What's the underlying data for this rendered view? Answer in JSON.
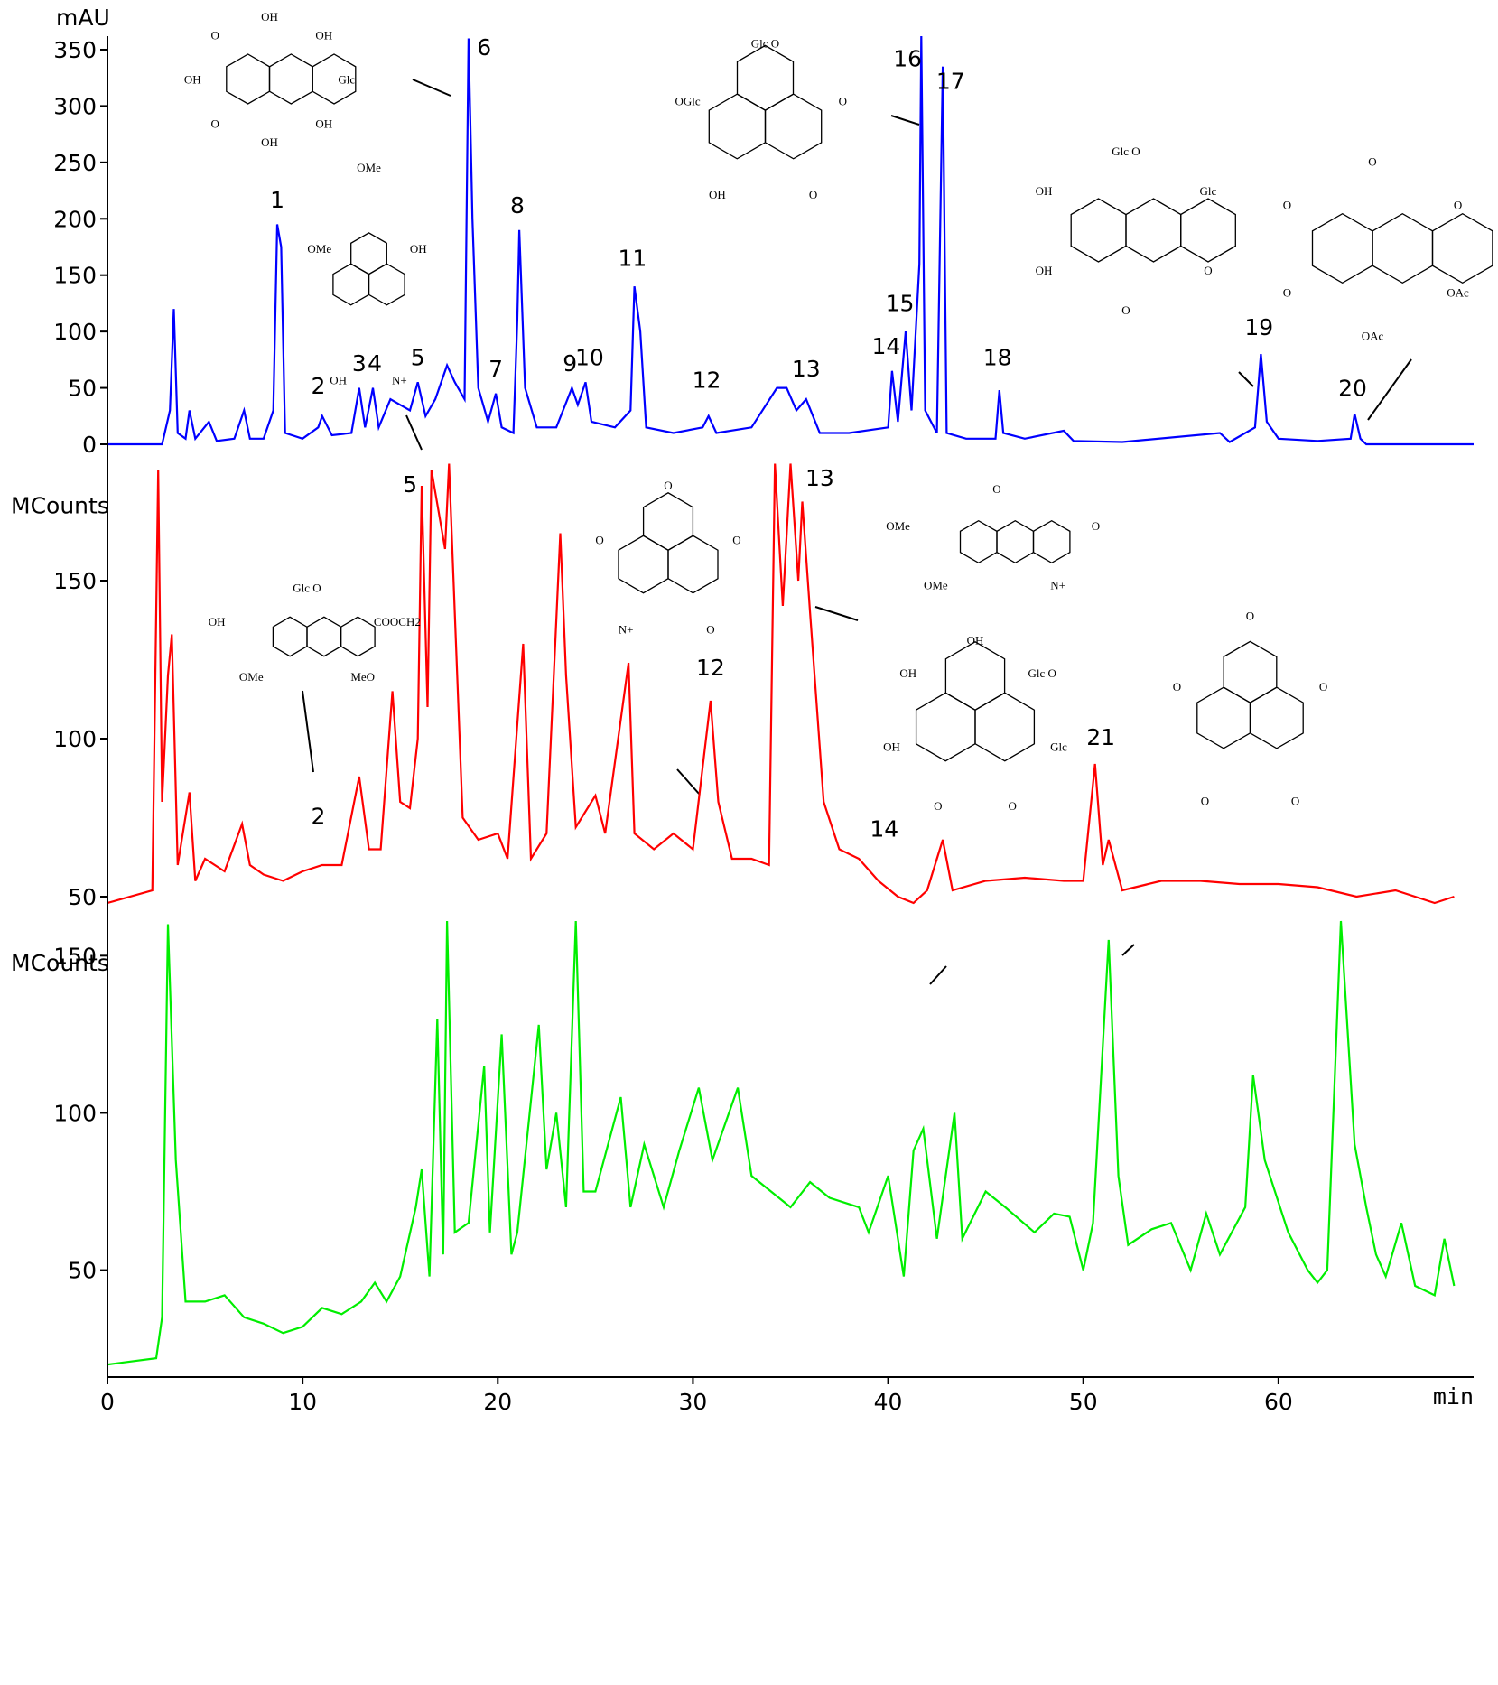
{
  "chart_data": [
    {
      "type": "line",
      "y_label": "mAU",
      "xlim": [
        0,
        70
      ],
      "ylim": [
        0,
        362
      ],
      "yticks": [
        0,
        50,
        100,
        150,
        200,
        250,
        300,
        350
      ],
      "series": [
        {
          "color": "#0000ff",
          "x": [
            0,
            2.8,
            3.2,
            3.4,
            3.6,
            4.0,
            4.2,
            4.5,
            5.2,
            5.6,
            6.5,
            7.0,
            7.3,
            8.0,
            8.5,
            8.7,
            8.9,
            9.1,
            10,
            10.8,
            11.0,
            11.5,
            12.5,
            12.9,
            13.2,
            13.6,
            13.9,
            14.5,
            15.0,
            15.5,
            15.9,
            16.3,
            16.8,
            17.4,
            17.8,
            18.3,
            18.5,
            18.7,
            19.0,
            19.5,
            19.9,
            20.2,
            20.8,
            21.0,
            21.1,
            21.4,
            22,
            23,
            23.8,
            24.1,
            24.5,
            24.8,
            26,
            26.8,
            27.0,
            27.3,
            27.6,
            29,
            30.5,
            30.8,
            31.2,
            33,
            34.3,
            34.8,
            35.3,
            35.8,
            36.5,
            38,
            40,
            40.2,
            40.5,
            40.9,
            41.2,
            41.6,
            41.7,
            41.9,
            42.5,
            42.8,
            43.0,
            44,
            45.5,
            45.7,
            45.9,
            47,
            49.0,
            49.5,
            52,
            57,
            57.5,
            58.8,
            59.1,
            59.4,
            60,
            62,
            63.7,
            63.9,
            64.2,
            64.5,
            70
          ],
          "values": [
            0,
            0,
            30,
            120,
            10,
            5,
            30,
            5,
            20,
            3,
            5,
            30,
            5,
            5,
            30,
            195,
            175,
            10,
            5,
            15,
            25,
            8,
            10,
            50,
            15,
            50,
            15,
            40,
            35,
            30,
            55,
            25,
            40,
            70,
            55,
            40,
            360,
            200,
            50,
            20,
            45,
            15,
            10,
            110,
            190,
            50,
            15,
            15,
            50,
            35,
            55,
            20,
            15,
            30,
            140,
            100,
            15,
            10,
            15,
            25,
            10,
            15,
            50,
            50,
            30,
            40,
            10,
            10,
            15,
            65,
            20,
            100,
            30,
            160,
            362,
            30,
            10,
            335,
            10,
            5,
            5,
            48,
            10,
            5,
            12,
            3,
            2,
            10,
            2,
            15,
            80,
            20,
            5,
            3,
            5,
            27,
            5,
            0,
            0
          ]
        }
      ],
      "annotations": [
        {
          "text": "1",
          "x": 8.7,
          "y": 210
        },
        {
          "text": "2",
          "x": 10.8,
          "y": 45
        },
        {
          "text": "3",
          "x": 12.9,
          "y": 65
        },
        {
          "text": "4",
          "x": 13.7,
          "y": 65
        },
        {
          "text": "5",
          "x": 15.9,
          "y": 70
        },
        {
          "text": "6",
          "x": 19.3,
          "y": 345
        },
        {
          "text": "7",
          "x": 19.9,
          "y": 60
        },
        {
          "text": "8",
          "x": 21.0,
          "y": 205
        },
        {
          "text": "9",
          "x": 23.7,
          "y": 65
        },
        {
          "text": "10",
          "x": 24.7,
          "y": 70
        },
        {
          "text": "11",
          "x": 26.9,
          "y": 158
        },
        {
          "text": "12",
          "x": 30.7,
          "y": 50
        },
        {
          "text": "13",
          "x": 35.8,
          "y": 60
        },
        {
          "text": "14",
          "x": 39.9,
          "y": 80
        },
        {
          "text": "15",
          "x": 40.6,
          "y": 118
        },
        {
          "text": "16",
          "x": 41.0,
          "y": 335
        },
        {
          "text": "17",
          "x": 43.2,
          "y": 315
        },
        {
          "text": "18",
          "x": 45.6,
          "y": 70
        },
        {
          "text": "19",
          "x": 59.0,
          "y": 97
        },
        {
          "text": "20",
          "x": 63.8,
          "y": 43
        }
      ]
    },
    {
      "type": "line",
      "y_label": "MCounts",
      "xlim": [
        0,
        70
      ],
      "ylim": [
        43,
        187
      ],
      "yticks": [
        50,
        100,
        150
      ],
      "series": [
        {
          "color": "#ff0000",
          "x": [
            0,
            2.3,
            2.6,
            2.8,
            3.1,
            3.3,
            3.6,
            4.2,
            4.5,
            5,
            6,
            6.9,
            7.3,
            8,
            9,
            10,
            11,
            12,
            12.9,
            13.4,
            14.0,
            14.6,
            15.0,
            15.5,
            15.9,
            16.1,
            16.4,
            16.6,
            17.3,
            17.5,
            18.2,
            19.0,
            20,
            20.5,
            21.3,
            21.7,
            22.5,
            23.2,
            23.5,
            24,
            25,
            25.5,
            26.7,
            27,
            28,
            29,
            30,
            30.9,
            31.3,
            32,
            33,
            33.9,
            34.2,
            34.6,
            35.0,
            35.4,
            35.6,
            36.0,
            36.7,
            37.5,
            38.5,
            39.5,
            40.5,
            41.3,
            42,
            42.8,
            43.3,
            45,
            47,
            49,
            50.0,
            50.6,
            51.0,
            51.3,
            52,
            54,
            56,
            58,
            60,
            62,
            64,
            66,
            68,
            69
          ],
          "values": [
            48,
            52,
            185,
            80,
            120,
            133,
            60,
            83,
            55,
            62,
            58,
            73,
            60,
            57,
            55,
            58,
            60,
            60,
            88,
            65,
            65,
            115,
            80,
            78,
            100,
            180,
            110,
            185,
            160,
            187,
            75,
            68,
            70,
            62,
            130,
            62,
            70,
            165,
            120,
            72,
            82,
            70,
            124,
            70,
            65,
            70,
            65,
            112,
            80,
            62,
            62,
            60,
            187,
            142,
            187,
            150,
            175,
            140,
            80,
            65,
            62,
            55,
            50,
            48,
            52,
            68,
            52,
            55,
            56,
            55,
            55,
            92,
            60,
            68,
            52,
            55,
            55,
            54,
            54,
            53,
            50,
            52,
            48,
            50
          ]
        }
      ],
      "annotations": [
        {
          "text": "2",
          "x": 10.8,
          "y": 73
        },
        {
          "text": "5",
          "x": 15.5,
          "y": 178
        },
        {
          "text": "12",
          "x": 30.9,
          "y": 120
        },
        {
          "text": "13",
          "x": 36.5,
          "y": 180
        },
        {
          "text": "14",
          "x": 39.8,
          "y": 69
        },
        {
          "text": "21",
          "x": 50.9,
          "y": 98
        }
      ]
    },
    {
      "type": "line",
      "y_label": "MCounts",
      "x_label": "min",
      "xlim": [
        0,
        70
      ],
      "xticks": [
        0,
        10,
        20,
        30,
        40,
        50,
        60
      ],
      "ylim": [
        16,
        161
      ],
      "yticks": [
        50,
        100,
        150
      ],
      "series": [
        {
          "color": "#00ee00",
          "x": [
            0,
            2.5,
            2.8,
            3.1,
            3.5,
            4.0,
            5,
            6,
            7,
            8,
            9,
            10,
            11,
            12,
            13,
            13.7,
            14.3,
            15,
            15.8,
            16.1,
            16.5,
            16.9,
            17.2,
            17.4,
            17.8,
            18.5,
            19.3,
            19.6,
            20.2,
            20.7,
            21.0,
            22.1,
            22.5,
            23,
            23.5,
            24.0,
            24.4,
            25,
            26.3,
            26.8,
            27.5,
            28.5,
            29.3,
            30.3,
            31,
            32.3,
            33,
            34,
            35,
            36,
            37,
            38.5,
            39,
            40,
            40.8,
            41.3,
            41.8,
            42.5,
            43.4,
            43.8,
            45,
            46,
            47.5,
            48.5,
            49.3,
            50.0,
            50.5,
            51.3,
            51.8,
            52.3,
            53.5,
            54.5,
            55.5,
            56.3,
            57,
            58.3,
            58.7,
            59.3,
            60.5,
            61.5,
            62,
            62.5,
            63.2,
            63.9,
            64.5,
            65,
            65.5,
            66.3,
            67,
            68,
            68.5,
            69
          ],
          "values": [
            20,
            22,
            35,
            160,
            85,
            40,
            40,
            42,
            35,
            33,
            30,
            32,
            38,
            36,
            40,
            46,
            40,
            48,
            70,
            82,
            48,
            130,
            55,
            161,
            62,
            65,
            115,
            62,
            125,
            55,
            62,
            128,
            82,
            100,
            70,
            161,
            75,
            75,
            105,
            70,
            90,
            70,
            88,
            108,
            85,
            108,
            80,
            75,
            70,
            78,
            73,
            70,
            62,
            80,
            48,
            88,
            95,
            60,
            100,
            60,
            75,
            70,
            62,
            68,
            67,
            50,
            65,
            155,
            80,
            58,
            63,
            65,
            50,
            68,
            55,
            70,
            112,
            85,
            62,
            50,
            46,
            50,
            161,
            90,
            70,
            55,
            48,
            65,
            45,
            42,
            60,
            45
          ]
        }
      ]
    }
  ],
  "structures": [
    {
      "labels": [
        "OH",
        "OH",
        "Glc",
        "OH",
        "OH",
        "O",
        "OH",
        "O"
      ]
    },
    {
      "labels": [
        "OMe",
        "OH",
        "N+",
        "OH",
        "OMe"
      ]
    },
    {
      "labels": [
        "Glc O",
        "O",
        "O",
        "OH",
        "OGlc"
      ]
    },
    {
      "labels": [
        "Glc O",
        "Glc",
        "O",
        "O",
        "OH",
        "OH"
      ]
    },
    {
      "labels": [
        "O",
        "O",
        "OAc",
        "OAc",
        "O",
        "O"
      ]
    },
    {
      "labels": [
        "Glc O",
        "COOCH2",
        "MeO",
        "OMe",
        "OH"
      ]
    },
    {
      "labels": [
        "O",
        "O",
        "O",
        "N+",
        "O"
      ]
    },
    {
      "labels": [
        "O",
        "O",
        "N+",
        "OMe",
        "OMe"
      ]
    },
    {
      "labels": [
        "OH",
        "Glc O",
        "Glc",
        "O",
        "O",
        "OH",
        "OH"
      ]
    },
    {
      "labels": [
        "O",
        "O",
        "O",
        "O",
        "O"
      ]
    }
  ]
}
